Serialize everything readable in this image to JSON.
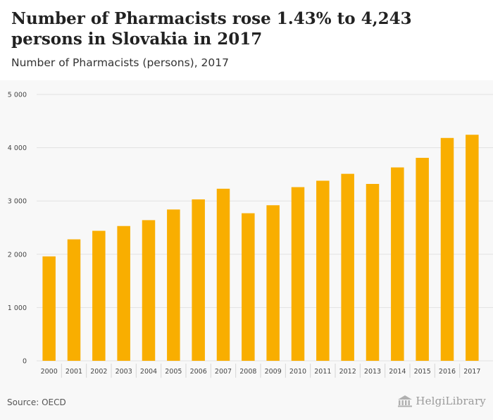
{
  "header": {
    "title": "Number of Pharmacists rose 1.43% to 4,243 persons in Slovakia in 2017",
    "subtitle": "Number of Pharmacists (persons), 2017"
  },
  "footer": {
    "source": "Source: OECD",
    "logo_text": "HelgiLibrary"
  },
  "colors": {
    "bar": "#f9ae00",
    "grid": "#e2e2e2",
    "plot_bg": "#f8f8f8"
  },
  "chart_data": {
    "type": "bar",
    "title": "Number of Pharmacists rose 1.43% to 4,243 persons in Slovakia in 2017",
    "subtitle": "Number of Pharmacists (persons), 2017",
    "categories": [
      "2000",
      "2001",
      "2002",
      "2003",
      "2004",
      "2005",
      "2006",
      "2007",
      "2008",
      "2009",
      "2010",
      "2011",
      "2012",
      "2013",
      "2014",
      "2015",
      "2016",
      "2017"
    ],
    "values": [
      1960,
      2280,
      2440,
      2530,
      2640,
      2840,
      3030,
      3230,
      2770,
      2920,
      3260,
      3380,
      3510,
      3320,
      3630,
      3810,
      4183,
      4243
    ],
    "ylim": [
      0,
      5000
    ],
    "yticks": [
      0,
      1000,
      2000,
      3000,
      4000,
      5000
    ],
    "ytick_labels": [
      "0",
      "1 000",
      "2 000",
      "3 000",
      "4 000",
      "5 000"
    ],
    "grid": true,
    "legend": "none",
    "source": "Source: OECD"
  }
}
